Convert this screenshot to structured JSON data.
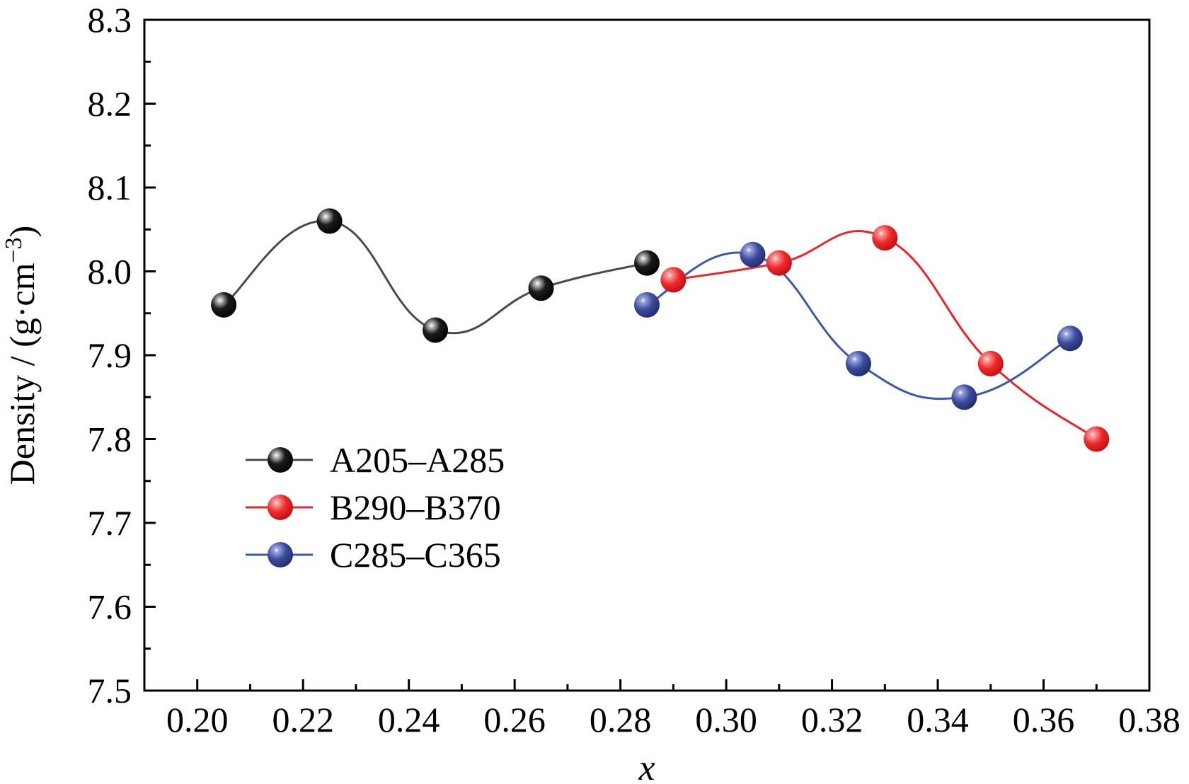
{
  "chart_data": {
    "type": "line",
    "title": "",
    "xlabel": "x",
    "ylabel_main": "Density / (g·cm",
    "ylabel_sup": "−3",
    "ylabel_close": ")",
    "xlim": [
      0.19,
      0.38
    ],
    "ylim": [
      7.5,
      8.3
    ],
    "x_ticks": [
      "0.20",
      "0.22",
      "0.24",
      "0.26",
      "0.28",
      "0.30",
      "0.32",
      "0.34",
      "0.36",
      "0.38"
    ],
    "y_ticks": [
      "7.5",
      "7.6",
      "7.7",
      "7.8",
      "7.9",
      "8.0",
      "8.1",
      "8.2",
      "8.3"
    ],
    "grid": false,
    "legend_position": "left-middle",
    "series": [
      {
        "name": "A205–A285",
        "color": "#111111",
        "line_color": "#4a4a4a",
        "x": [
          0.205,
          0.225,
          0.245,
          0.265,
          0.285
        ],
        "y": [
          7.96,
          8.06,
          7.93,
          7.98,
          8.01
        ]
      },
      {
        "name": "B290–B370",
        "color": "#e8262a",
        "line_color": "#e8262a",
        "x": [
          0.29,
          0.31,
          0.33,
          0.35,
          0.37
        ],
        "y": [
          7.99,
          8.01,
          8.04,
          7.89,
          7.8
        ]
      },
      {
        "name": "C285–C365",
        "color": "#3a4a9a",
        "line_color": "#3a5aa8",
        "x": [
          0.285,
          0.305,
          0.325,
          0.345,
          0.365
        ],
        "y": [
          7.96,
          8.02,
          7.89,
          7.85,
          7.92
        ]
      }
    ]
  }
}
